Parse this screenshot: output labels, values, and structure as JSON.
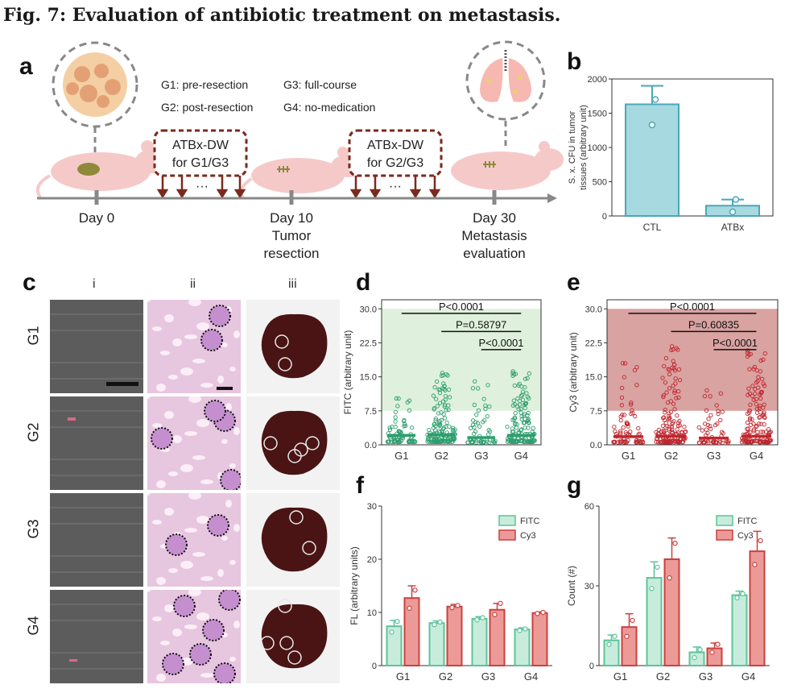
{
  "figure_title": "Fig. 7: Evaluation of antibiotic treatment on metastasis.",
  "panel_labels": {
    "a": "a",
    "b": "b",
    "c": "c",
    "d": "d",
    "e": "e",
    "f": "f",
    "g": "g"
  },
  "schematic": {
    "groups": [
      "G1: pre-resection",
      "G2: post-resection",
      "G3: full-course",
      "G4: no-medication"
    ],
    "box1": [
      "ATBx-DW",
      "for G1/G3"
    ],
    "box2": [
      "ATBx-DW",
      "for G2/G3"
    ],
    "ellipsis": "···",
    "timeline": [
      {
        "label": [
          "Day 0"
        ]
      },
      {
        "label": [
          "Day 10",
          "Tumor",
          "resection"
        ]
      },
      {
        "label": [
          "Day 30",
          "Metastasis",
          "evaluation"
        ]
      }
    ],
    "colors": {
      "mouse": "#f6c9c9",
      "box_border": "#7a2a1e",
      "arrow": "#7a2a1e",
      "axis": "#888888"
    }
  },
  "histology": {
    "columns": [
      "i",
      "ii",
      "iii"
    ],
    "rows": [
      "G1",
      "G2",
      "G3",
      "G4"
    ],
    "colors": {
      "fluor_bg": "#5c5c5c",
      "he_bg": "#e7c6e0",
      "liver": "#4a1414"
    }
  },
  "chart_data": [
    {
      "panel": "b",
      "type": "bar",
      "categories": [
        "CTL",
        "ATBx"
      ],
      "values": [
        1630,
        150
      ],
      "errors": [
        270,
        90
      ],
      "points": [
        [
          1700,
          1330
        ],
        [
          240,
          60
        ]
      ],
      "ylabel": [
        "S. x. CFU in tumor",
        "tissues (arbitrary unit)"
      ],
      "ylim": [
        0,
        2000
      ],
      "yticks": [
        0,
        500,
        1000,
        1500,
        2000
      ],
      "color": "#4aa8b8"
    },
    {
      "panel": "d",
      "type": "scatter",
      "categories": [
        "G1",
        "G2",
        "G3",
        "G4"
      ],
      "medians": [
        2.1,
        2.2,
        1.6,
        2.1
      ],
      "max_values": [
        11,
        16.5,
        14,
        16.2
      ],
      "counts": [
        70,
        150,
        55,
        140
      ],
      "ylabel": "FITC (arbitrary unit)",
      "ylim": [
        0,
        32
      ],
      "yticks": [
        0,
        7.5,
        15,
        22.5,
        30
      ],
      "ytick_labels": [
        "0.0",
        "7.5",
        "15.0",
        "22.5",
        "30.0"
      ],
      "highlight_band": [
        7.5,
        30
      ],
      "stats": [
        {
          "from": 0,
          "to": 3,
          "y": 29,
          "text": "P<0.0001"
        },
        {
          "from": 1,
          "to": 3,
          "y": 25,
          "text": "P=0.58797"
        },
        {
          "from": 2,
          "to": 3,
          "y": 21,
          "text": "P<0.0001"
        }
      ],
      "color": "#2e9e6e",
      "band_color": "#dff1dc"
    },
    {
      "panel": "e",
      "type": "scatter",
      "categories": [
        "G1",
        "G2",
        "G3",
        "G4"
      ],
      "medians": [
        1.8,
        1.9,
        1.5,
        1.9
      ],
      "max_values": [
        20,
        23,
        12,
        21
      ],
      "counts": [
        70,
        150,
        55,
        140
      ],
      "ylabel": "Cy3 (arbitrary unit)",
      "ylim": [
        0,
        32
      ],
      "yticks": [
        0,
        7.5,
        15,
        22.5,
        30
      ],
      "ytick_labels": [
        "0.0",
        "7.5",
        "15.0",
        "22.5",
        "30.0"
      ],
      "highlight_band": [
        7.5,
        30
      ],
      "stats": [
        {
          "from": 0,
          "to": 3,
          "y": 29,
          "text": "P<0.0001"
        },
        {
          "from": 1,
          "to": 3,
          "y": 25,
          "text": "P=0.60835"
        },
        {
          "from": 2,
          "to": 3,
          "y": 21,
          "text": "P<0.0001"
        }
      ],
      "color": "#c0262e",
      "band_color": "#d9a3a1"
    },
    {
      "panel": "f",
      "type": "bar",
      "categories": [
        "G1",
        "G2",
        "G3",
        "G4"
      ],
      "series": [
        {
          "name": "FITC",
          "values": [
            7.4,
            8.0,
            8.8,
            6.8
          ],
          "errors": [
            1.1,
            0.4,
            0.4,
            0.3
          ],
          "points": [
            [
              8.3,
              6.3
            ],
            [
              8.2,
              7.7
            ],
            [
              9.0,
              8.6
            ],
            [
              6.9,
              6.6
            ]
          ],
          "color": "#5cc49a",
          "fill": "#c8ecdc"
        },
        {
          "name": "Cy3",
          "values": [
            12.7,
            11.1,
            10.5,
            9.9
          ],
          "errors": [
            2.3,
            0.4,
            1.2,
            0.2
          ],
          "points": [
            [
              14.2,
              10.8
            ],
            [
              11.3,
              10.9
            ],
            [
              11.7,
              9.6
            ],
            [
              10.0,
              9.8
            ]
          ],
          "color": "#c9423f",
          "fill": "#ec9a98"
        }
      ],
      "ylabel": "FL (arbitrary units)",
      "ylim": [
        0,
        30
      ],
      "yticks": [
        0,
        10,
        20,
        30
      ]
    },
    {
      "panel": "g",
      "type": "bar",
      "categories": [
        "G1",
        "G2",
        "G3",
        "G4"
      ],
      "series": [
        {
          "name": "FITC",
          "values": [
            9.5,
            33,
            5,
            26.5
          ],
          "errors": [
            2.0,
            6.0,
            2.0,
            1.5
          ],
          "points": [
            [
              11,
              8
            ],
            [
              37,
              29
            ],
            [
              6,
              3
            ],
            [
              27,
              25.5
            ]
          ],
          "color": "#5cc49a",
          "fill": "#c8ecdc"
        },
        {
          "name": "Cy3",
          "values": [
            14.5,
            40,
            6.5,
            43
          ],
          "errors": [
            5.0,
            8.0,
            2.0,
            7.5
          ],
          "points": [
            [
              17,
              11
            ],
            [
              46,
              33
            ],
            [
              8,
              5
            ],
            [
              47,
              38
            ]
          ],
          "color": "#c9423f",
          "fill": "#ec9a98"
        }
      ],
      "ylabel": "Count (#)",
      "ylim": [
        0,
        60
      ],
      "yticks": [
        0,
        30,
        60
      ]
    }
  ]
}
